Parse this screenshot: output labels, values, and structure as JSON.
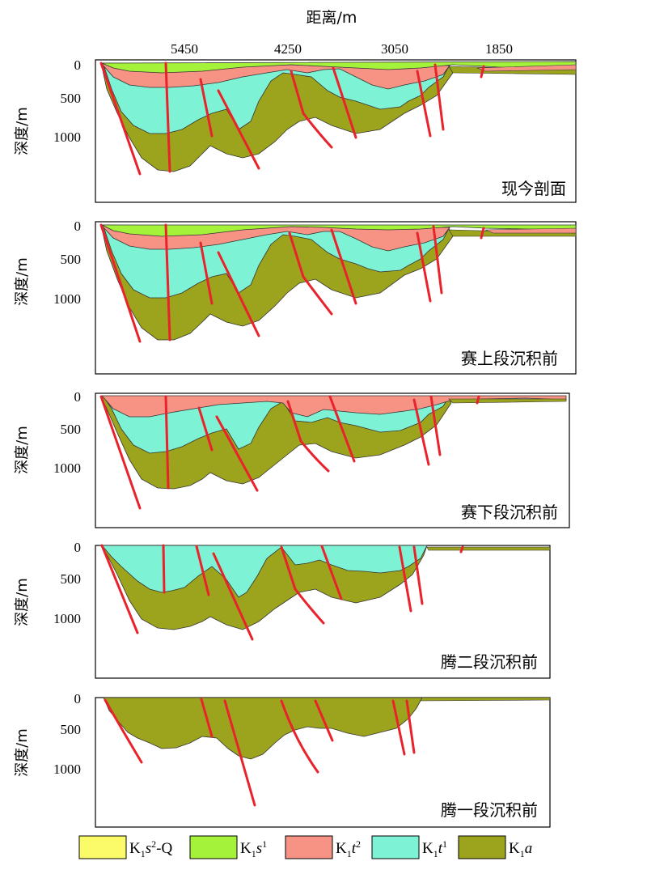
{
  "top_axis": {
    "title": "距离/m",
    "ticks": [
      "5450",
      "4250",
      "3050",
      "1850"
    ]
  },
  "y_axis_label": "深度/m",
  "y_ticks": [
    "0",
    "500",
    "1000"
  ],
  "panels": [
    {
      "label": "现今剖面"
    },
    {
      "label": "赛上段沉积前"
    },
    {
      "label": "赛下段沉积前"
    },
    {
      "label": "腾二段沉积前"
    },
    {
      "label": "腾一段沉积前"
    }
  ],
  "legend": [
    {
      "base": "K",
      "sub": "1",
      "letter": "s",
      "sup": "2",
      "suffix": "-Q",
      "color": "#fbfb6a"
    },
    {
      "base": "K",
      "sub": "1",
      "letter": "s",
      "sup": "1",
      "suffix": "",
      "color": "#a4f23a"
    },
    {
      "base": "K",
      "sub": "1",
      "letter": "t",
      "sup": "2",
      "suffix": "",
      "color": "#f79384"
    },
    {
      "base": "K",
      "sub": "1",
      "letter": "t",
      "sup": "1",
      "suffix": "",
      "color": "#7ef2d4"
    },
    {
      "base": "K",
      "sub": "1",
      "letter": "a",
      "sup": "",
      "suffix": "",
      "color": "#9ca31d"
    }
  ],
  "fault_color": "#e8232b"
}
